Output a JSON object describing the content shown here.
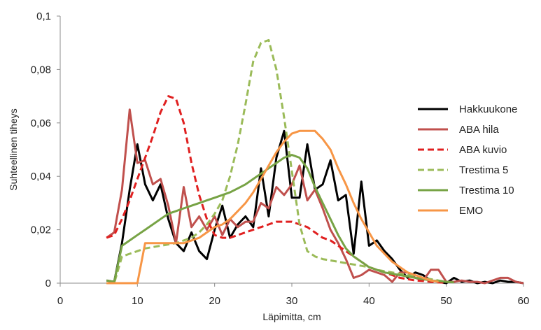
{
  "chart_data": {
    "type": "line",
    "xlabel": "Läpimitta, cm",
    "ylabel": "Suhteellinen tiheys",
    "xlim": [
      0,
      60
    ],
    "ylim": [
      0,
      0.1
    ],
    "x_ticks": [
      0,
      10,
      20,
      30,
      40,
      50,
      60
    ],
    "x_tick_labels": [
      "0",
      "10",
      "20",
      "30",
      "40",
      "50",
      "60"
    ],
    "y_ticks": [
      0,
      0.02,
      0.04,
      0.06,
      0.08,
      0.1
    ],
    "y_tick_labels": [
      "0",
      "0,02",
      "0,04",
      "0,06",
      "0,08",
      "0,1"
    ],
    "grid": false,
    "legend_position": "right",
    "series": [
      {
        "name": "Hakkuukone",
        "color": "#000000",
        "dash": "solid",
        "x": [
          6,
          7,
          8,
          9,
          10,
          11,
          12,
          13,
          14,
          15,
          16,
          17,
          18,
          19,
          20,
          21,
          22,
          23,
          24,
          25,
          26,
          27,
          28,
          29,
          30,
          31,
          32,
          33,
          34,
          35,
          36,
          37,
          38,
          39,
          40,
          41,
          42,
          43,
          44,
          45,
          46,
          47,
          48,
          49,
          50,
          51,
          52,
          53,
          54,
          55,
          56,
          57,
          58,
          59,
          60
        ],
        "y": [
          0.001,
          0.0005,
          0.015,
          0.035,
          0.052,
          0.037,
          0.031,
          0.037,
          0.024,
          0.015,
          0.012,
          0.019,
          0.012,
          0.009,
          0.02,
          0.029,
          0.017,
          0.022,
          0.025,
          0.021,
          0.043,
          0.025,
          0.047,
          0.057,
          0.032,
          0.032,
          0.052,
          0.035,
          0.037,
          0.046,
          0.031,
          0.033,
          0.011,
          0.038,
          0.014,
          0.016,
          0.012,
          0.009,
          0.005,
          0.002,
          0.004,
          0.003,
          0.001,
          0.0005,
          0.0,
          0.002,
          0.0005,
          0.001,
          0.0,
          0.0005,
          0.0,
          0.001,
          0.0005,
          0.0005,
          0.0
        ]
      },
      {
        "name": "ABA hila",
        "color": "#C0504D",
        "dash": "solid",
        "x": [
          6,
          7,
          8,
          9,
          10,
          11,
          12,
          13,
          14,
          15,
          16,
          17,
          18,
          19,
          20,
          21,
          22,
          23,
          24,
          25,
          26,
          27,
          28,
          29,
          30,
          31,
          32,
          33,
          34,
          35,
          36,
          37,
          38,
          39,
          40,
          41,
          42,
          43,
          44,
          45,
          46,
          47,
          48,
          49,
          50,
          51,
          52,
          53,
          54,
          55,
          56,
          57,
          58,
          59,
          60
        ],
        "y": [
          0.017,
          0.019,
          0.035,
          0.065,
          0.045,
          0.046,
          0.037,
          0.039,
          0.029,
          0.015,
          0.036,
          0.021,
          0.025,
          0.02,
          0.025,
          0.018,
          0.024,
          0.021,
          0.023,
          0.023,
          0.03,
          0.028,
          0.036,
          0.033,
          0.037,
          0.044,
          0.031,
          0.035,
          0.028,
          0.02,
          0.015,
          0.009,
          0.002,
          0.003,
          0.005,
          0.004,
          0.003,
          0.0005,
          0.004,
          0.004,
          0.002,
          0.001,
          0.005,
          0.005,
          0.0005,
          0.0005,
          0.001,
          0.0005,
          0.0005,
          0.0,
          0.001,
          0.002,
          0.002,
          0.0005,
          0.0
        ]
      },
      {
        "name": "ABA kuvio",
        "color": "#E02020",
        "dash": "dashed",
        "x": [
          6,
          7,
          8,
          9,
          10,
          11,
          12,
          13,
          14,
          15,
          16,
          17,
          18,
          19,
          20,
          21,
          22,
          23,
          24,
          25,
          26,
          27,
          28,
          29,
          30,
          31,
          32,
          33,
          34,
          35,
          36,
          37,
          38,
          39,
          40,
          41,
          42,
          43,
          44,
          45,
          46,
          47,
          48,
          49,
          50
        ],
        "y": [
          0.017,
          0.018,
          0.024,
          0.031,
          0.039,
          0.047,
          0.055,
          0.064,
          0.07,
          0.069,
          0.06,
          0.045,
          0.033,
          0.024,
          0.018,
          0.017,
          0.017,
          0.018,
          0.019,
          0.02,
          0.021,
          0.022,
          0.023,
          0.023,
          0.023,
          0.022,
          0.021,
          0.019,
          0.017,
          0.016,
          0.014,
          0.012,
          0.01,
          0.008,
          0.006,
          0.005,
          0.004,
          0.003,
          0.002,
          0.0015,
          0.001,
          0.0008,
          0.0005,
          0.0003,
          0.0002
        ]
      },
      {
        "name": "Trestima 5",
        "color": "#9BBB59",
        "dash": "dashed",
        "x": [
          6,
          7,
          8,
          9,
          10,
          11,
          12,
          13,
          14,
          15,
          16,
          17,
          18,
          19,
          20,
          21,
          22,
          23,
          24,
          25,
          26,
          27,
          28,
          29,
          30,
          31,
          32,
          33,
          34,
          35,
          36,
          37,
          38,
          39,
          40,
          41,
          42,
          43,
          44,
          45,
          46,
          47,
          48,
          49,
          50
        ],
        "y": [
          0.0,
          0.0,
          0.01,
          0.011,
          0.012,
          0.013,
          0.0135,
          0.014,
          0.0145,
          0.015,
          0.016,
          0.017,
          0.019,
          0.022,
          0.026,
          0.031,
          0.04,
          0.052,
          0.067,
          0.083,
          0.09,
          0.091,
          0.08,
          0.062,
          0.042,
          0.022,
          0.012,
          0.01,
          0.009,
          0.0085,
          0.008,
          0.0075,
          0.007,
          0.0065,
          0.006,
          0.005,
          0.0045,
          0.004,
          0.0035,
          0.003,
          0.0025,
          0.002,
          0.0015,
          0.001,
          0.0005
        ]
      },
      {
        "name": "Trestima 10",
        "color": "#77A345",
        "dash": "solid",
        "x": [
          6,
          7,
          8,
          9,
          10,
          11,
          12,
          13,
          14,
          15,
          16,
          17,
          18,
          19,
          20,
          21,
          22,
          23,
          24,
          25,
          26,
          27,
          28,
          29,
          30,
          31,
          32,
          33,
          34,
          35,
          36,
          37,
          38,
          39,
          40,
          41,
          42,
          43,
          44,
          45,
          46,
          47,
          48,
          49,
          50,
          51
        ],
        "y": [
          0.001,
          0.0005,
          0.014,
          0.016,
          0.018,
          0.02,
          0.022,
          0.024,
          0.026,
          0.027,
          0.028,
          0.029,
          0.03,
          0.031,
          0.032,
          0.033,
          0.034,
          0.0355,
          0.037,
          0.039,
          0.041,
          0.043,
          0.045,
          0.047,
          0.048,
          0.047,
          0.043,
          0.036,
          0.03,
          0.024,
          0.018,
          0.013,
          0.01,
          0.008,
          0.006,
          0.005,
          0.004,
          0.0035,
          0.003,
          0.0025,
          0.002,
          0.0015,
          0.001,
          0.0008,
          0.0005,
          0.0003
        ]
      },
      {
        "name": "EMO",
        "color": "#F79646",
        "dash": "solid",
        "x": [
          6,
          7,
          8,
          9,
          10,
          11,
          12,
          13,
          14,
          15,
          16,
          17,
          18,
          19,
          20,
          21,
          22,
          23,
          24,
          25,
          26,
          27,
          28,
          29,
          30,
          31,
          32,
          33,
          34,
          35,
          36,
          37,
          38,
          39,
          40,
          41,
          42,
          43,
          44,
          45,
          46,
          47,
          48,
          49
        ],
        "y": [
          0.0,
          0.0,
          0.0,
          0.0,
          0.0,
          0.015,
          0.015,
          0.015,
          0.015,
          0.015,
          0.015,
          0.016,
          0.017,
          0.019,
          0.021,
          0.022,
          0.024,
          0.027,
          0.03,
          0.034,
          0.039,
          0.044,
          0.049,
          0.053,
          0.056,
          0.057,
          0.057,
          0.057,
          0.054,
          0.05,
          0.043,
          0.037,
          0.03,
          0.024,
          0.019,
          0.014,
          0.011,
          0.008,
          0.006,
          0.004,
          0.003,
          0.002,
          0.001,
          0.0005
        ]
      }
    ]
  }
}
